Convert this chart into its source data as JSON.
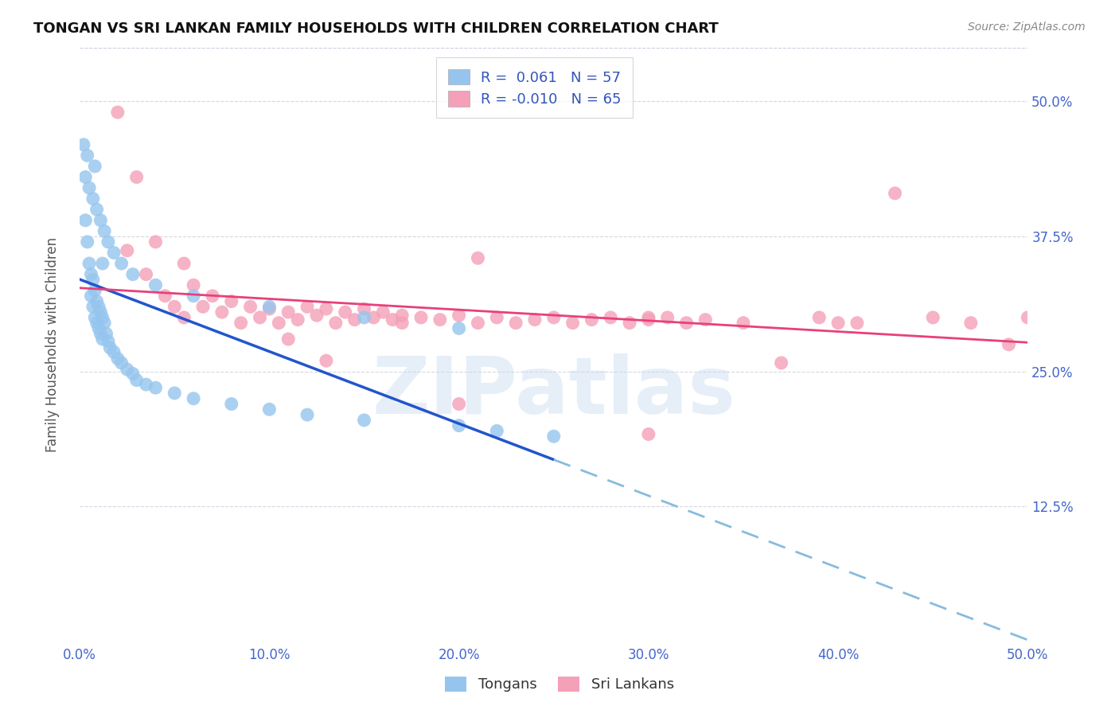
{
  "title": "TONGAN VS SRI LANKAN FAMILY HOUSEHOLDS WITH CHILDREN CORRELATION CHART",
  "source": "Source: ZipAtlas.com",
  "ylabel_label": "Family Households with Children",
  "xmin": 0.0,
  "xmax": 0.5,
  "ymin": 0.0,
  "ymax": 0.55,
  "r_tongan": 0.061,
  "n_tongan": 57,
  "r_srilankan": -0.01,
  "n_srilankan": 65,
  "tongan_color": "#95C5EE",
  "srilankan_color": "#F4A0B8",
  "tongan_line_color": "#2255CC",
  "srilankan_line_color": "#E8407A",
  "tongan_dashed_color": "#88BBDD",
  "background_color": "#FFFFFF",
  "watermark": "ZIPatlas",
  "tongan_scatter_x": [
    0.002,
    0.003,
    0.004,
    0.005,
    0.006,
    0.006,
    0.007,
    0.007,
    0.008,
    0.008,
    0.009,
    0.009,
    0.01,
    0.01,
    0.011,
    0.011,
    0.012,
    0.012,
    0.013,
    0.014,
    0.015,
    0.016,
    0.018,
    0.02,
    0.022,
    0.025,
    0.028,
    0.03,
    0.035,
    0.04,
    0.05,
    0.06,
    0.08,
    0.1,
    0.12,
    0.15,
    0.2,
    0.22,
    0.25,
    0.003,
    0.005,
    0.007,
    0.009,
    0.011,
    0.013,
    0.015,
    0.018,
    0.022,
    0.028,
    0.04,
    0.06,
    0.1,
    0.15,
    0.2,
    0.004,
    0.008,
    0.012
  ],
  "tongan_scatter_y": [
    0.46,
    0.39,
    0.37,
    0.35,
    0.34,
    0.32,
    0.335,
    0.31,
    0.325,
    0.3,
    0.315,
    0.295,
    0.31,
    0.29,
    0.305,
    0.285,
    0.3,
    0.28,
    0.295,
    0.285,
    0.278,
    0.272,
    0.268,
    0.262,
    0.258,
    0.252,
    0.248,
    0.242,
    0.238,
    0.235,
    0.23,
    0.225,
    0.22,
    0.215,
    0.21,
    0.205,
    0.2,
    0.195,
    0.19,
    0.43,
    0.42,
    0.41,
    0.4,
    0.39,
    0.38,
    0.37,
    0.36,
    0.35,
    0.34,
    0.33,
    0.32,
    0.31,
    0.3,
    0.29,
    0.45,
    0.44,
    0.35
  ],
  "srilankan_x": [
    0.02,
    0.03,
    0.04,
    0.05,
    0.055,
    0.06,
    0.065,
    0.07,
    0.075,
    0.08,
    0.085,
    0.09,
    0.095,
    0.1,
    0.105,
    0.11,
    0.115,
    0.12,
    0.125,
    0.13,
    0.135,
    0.14,
    0.145,
    0.15,
    0.155,
    0.16,
    0.165,
    0.17,
    0.18,
    0.19,
    0.2,
    0.21,
    0.22,
    0.23,
    0.24,
    0.25,
    0.26,
    0.27,
    0.28,
    0.29,
    0.3,
    0.31,
    0.32,
    0.33,
    0.35,
    0.37,
    0.39,
    0.41,
    0.43,
    0.45,
    0.47,
    0.49,
    0.5,
    0.025,
    0.035,
    0.045,
    0.055,
    0.11,
    0.13,
    0.17,
    0.21,
    0.3,
    0.4,
    0.2,
    0.3
  ],
  "srilankan_y": [
    0.49,
    0.43,
    0.37,
    0.31,
    0.35,
    0.33,
    0.31,
    0.32,
    0.305,
    0.315,
    0.295,
    0.31,
    0.3,
    0.308,
    0.295,
    0.305,
    0.298,
    0.31,
    0.302,
    0.308,
    0.295,
    0.305,
    0.298,
    0.308,
    0.3,
    0.305,
    0.298,
    0.302,
    0.3,
    0.298,
    0.302,
    0.295,
    0.3,
    0.295,
    0.298,
    0.3,
    0.295,
    0.298,
    0.3,
    0.295,
    0.298,
    0.3,
    0.295,
    0.298,
    0.295,
    0.258,
    0.3,
    0.295,
    0.415,
    0.3,
    0.295,
    0.275,
    0.3,
    0.362,
    0.34,
    0.32,
    0.3,
    0.28,
    0.26,
    0.295,
    0.355,
    0.3,
    0.295,
    0.22,
    0.192
  ]
}
